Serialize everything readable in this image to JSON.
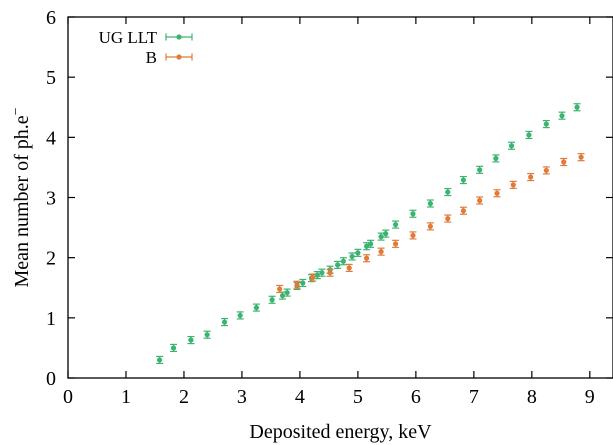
{
  "chart_data": {
    "type": "scatter",
    "xlabel": "Deposited energy, keV",
    "ylabel": "Mean number of ph.e",
    "ylabel_sup": "−",
    "xlim": [
      0,
      9.4
    ],
    "ylim": [
      0,
      6
    ],
    "xticks": [
      0,
      1,
      2,
      3,
      4,
      5,
      6,
      7,
      8,
      9
    ],
    "yticks": [
      0,
      1,
      2,
      3,
      4,
      5,
      6
    ],
    "grid": false,
    "legend_position": "top-left",
    "series": [
      {
        "name": "UG LLT",
        "color": "#3cb371",
        "marker": "circle",
        "error_bars": true,
        "x": [
          1.58,
          1.82,
          2.12,
          2.4,
          2.7,
          2.97,
          3.25,
          3.52,
          3.7,
          3.78,
          3.95,
          4.05,
          4.2,
          4.3,
          4.38,
          4.52,
          4.65,
          4.75,
          4.9,
          5.0,
          5.15,
          5.22,
          5.4,
          5.48,
          5.65,
          5.95,
          6.25,
          6.55,
          6.82,
          7.1,
          7.38,
          7.65,
          7.95,
          8.25,
          8.52,
          8.78
        ],
        "y": [
          0.3,
          0.5,
          0.63,
          0.72,
          0.93,
          1.04,
          1.17,
          1.3,
          1.37,
          1.42,
          1.53,
          1.58,
          1.66,
          1.71,
          1.75,
          1.8,
          1.88,
          1.94,
          2.02,
          2.08,
          2.19,
          2.23,
          2.35,
          2.4,
          2.55,
          2.73,
          2.9,
          3.09,
          3.29,
          3.46,
          3.65,
          3.86,
          4.04,
          4.22,
          4.36,
          4.5
        ]
      },
      {
        "name": "B",
        "color": "#e07b39",
        "marker": "circle",
        "error_bars": true,
        "x": [
          3.65,
          3.95,
          4.22,
          4.52,
          4.85,
          5.15,
          5.4,
          5.65,
          5.95,
          6.25,
          6.55,
          6.82,
          7.1,
          7.4,
          7.68,
          7.98,
          8.25,
          8.55,
          8.85
        ],
        "y": [
          1.48,
          1.55,
          1.67,
          1.75,
          1.83,
          1.99,
          2.1,
          2.23,
          2.37,
          2.52,
          2.65,
          2.78,
          2.95,
          3.07,
          3.21,
          3.34,
          3.45,
          3.59,
          3.67
        ]
      }
    ]
  }
}
